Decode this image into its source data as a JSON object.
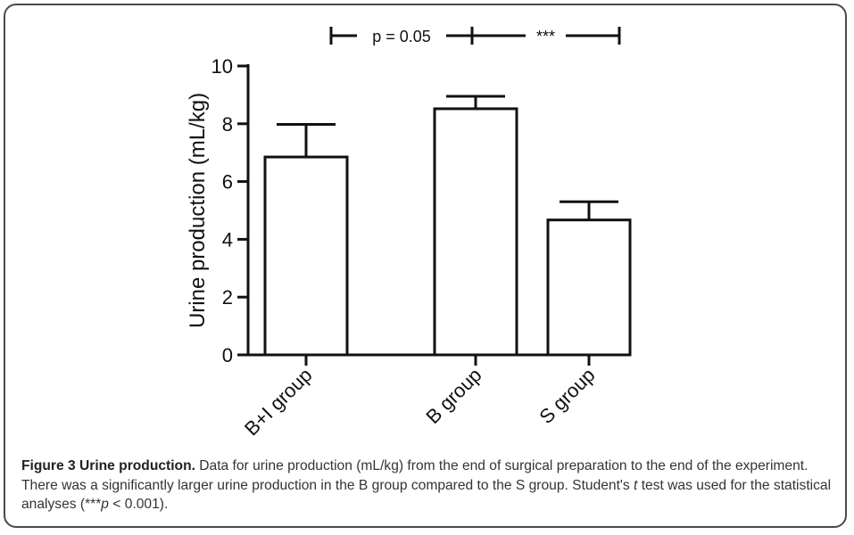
{
  "chart_data": {
    "type": "bar",
    "categories": [
      "B+I group",
      "B group",
      "S group"
    ],
    "values": [
      6.85,
      8.52,
      4.67
    ],
    "errors": [
      1.13,
      0.43,
      0.63
    ],
    "ylabel": "Urine production (mL/kg)",
    "xlabel": "",
    "ylim": [
      0,
      10
    ],
    "yticks": [
      0,
      2,
      4,
      6,
      8,
      10
    ],
    "grid": false,
    "significance": [
      {
        "from": 0,
        "to": 1,
        "label": "p = 0.05"
      },
      {
        "from": 1,
        "to": 2,
        "label": "***"
      }
    ],
    "colors": {
      "bar_fill": "#ffffff",
      "stroke": "#111111"
    }
  },
  "caption": {
    "title": "Figure 3 Urine production.",
    "text_1": " Data for urine production (mL/kg) from the end of surgical preparation to the end of the experiment. There was a significantly larger urine production in the B group compared to the S group. Student's ",
    "t": "t",
    "text_2": " test was used for the statistical analyses (***",
    "p": "p",
    "text_3": " < 0.001)."
  }
}
